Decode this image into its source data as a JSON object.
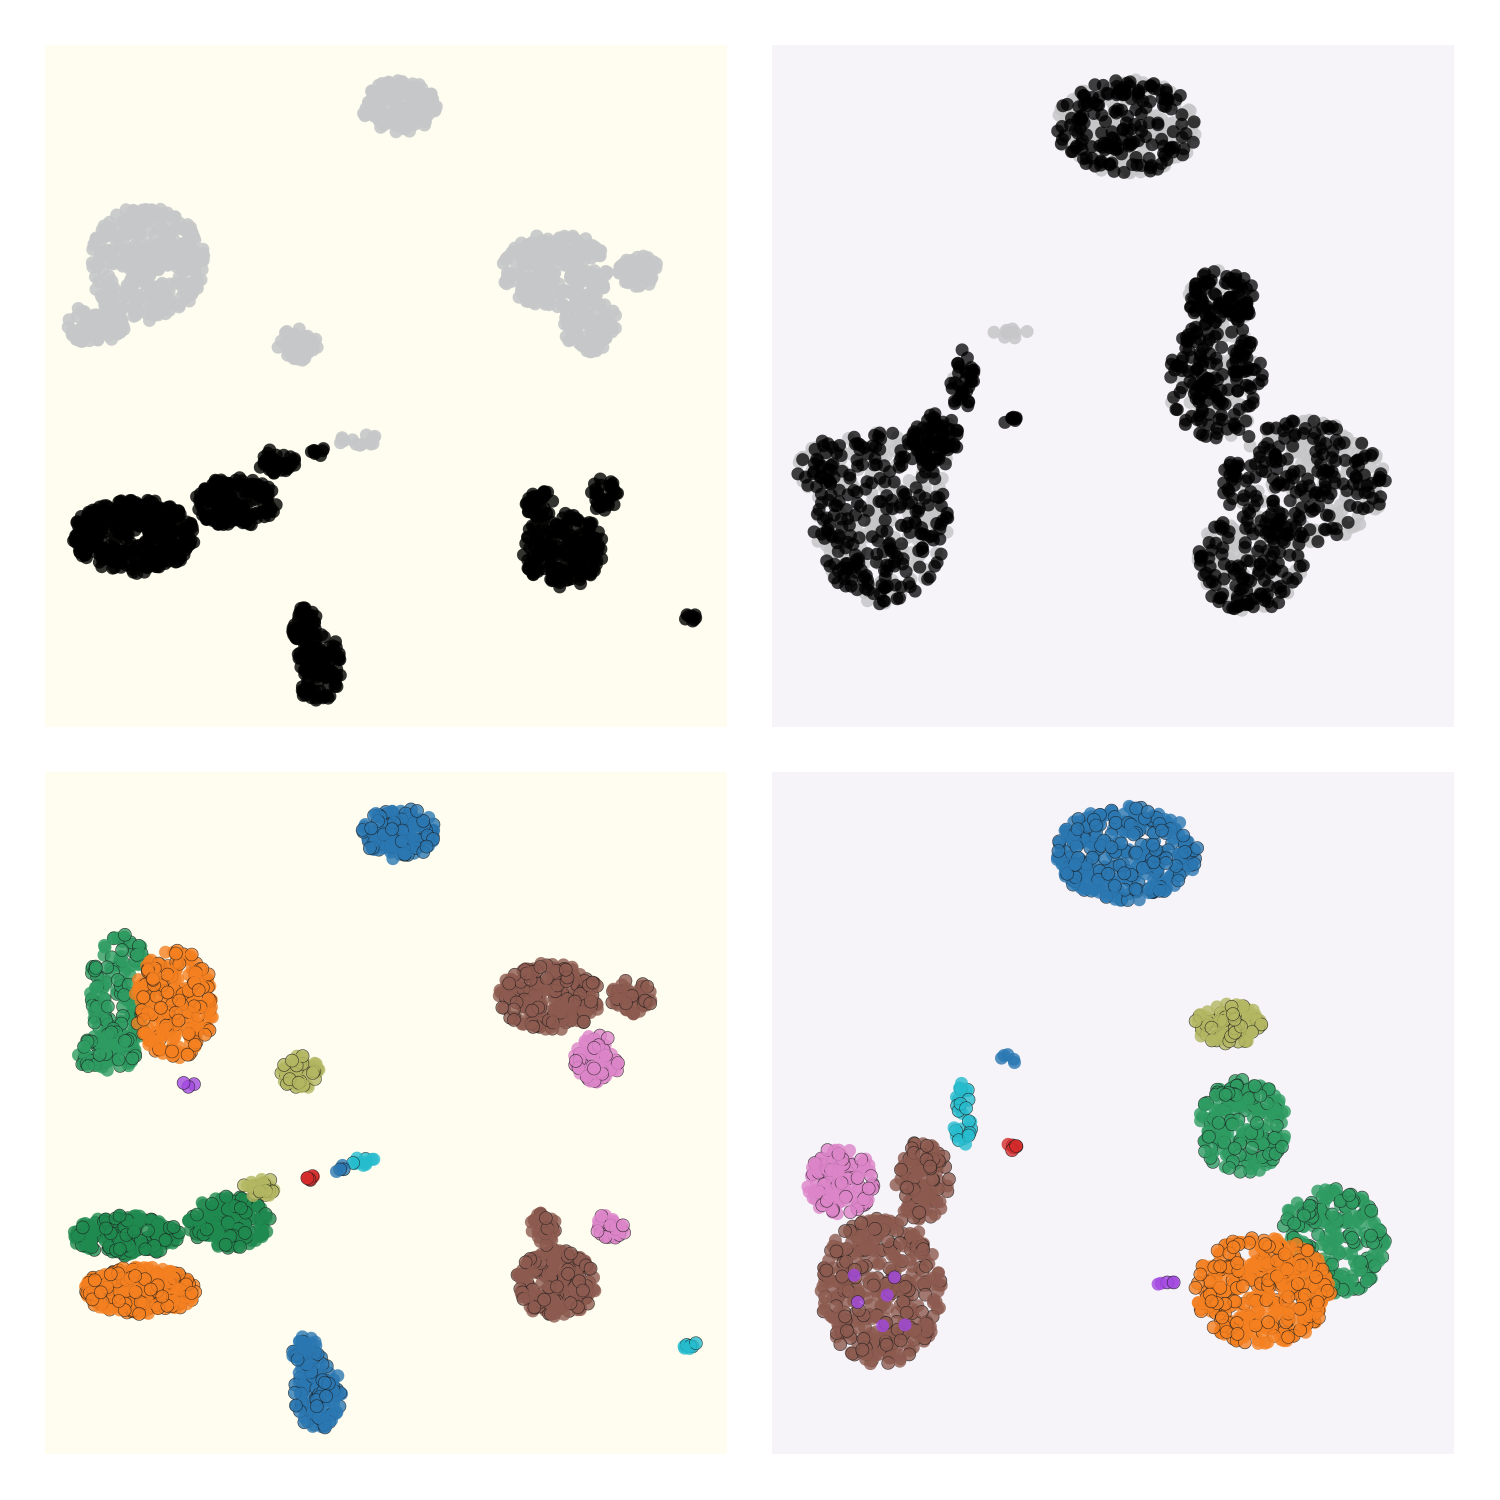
{
  "figure": {
    "colors": {
      "panel_bg_left": "#fefdf0",
      "panel_bg_right": "#f6f4f9",
      "point_highlight": "#000000",
      "point_background": "#c5c6c8",
      "blue": "#2a77b2",
      "orange": "#f47f20",
      "green": "#2e9b62",
      "dark_green": "#1f8a4f",
      "brown": "#8c5a4f",
      "pink": "#dc84c8",
      "olive": "#b3b762",
      "cyan": "#25bccd",
      "red": "#d42a2a",
      "purple": "#a349e0"
    }
  },
  "chart_data": [
    {
      "type": "scatter",
      "panel": "top-left",
      "title": "",
      "xlabel": "",
      "ylabel": "",
      "axes": "off",
      "grid": false,
      "legend": "none",
      "xlim": [
        0,
        100
      ],
      "ylim": [
        0,
        100
      ],
      "color_mode": "binary",
      "background_color": "#fefdf0",
      "clusters": [
        {
          "cx": 52,
          "cy": 91,
          "rx": 5.5,
          "ry": 3.8,
          "n": 140,
          "color": "point_background"
        },
        {
          "cx": 15,
          "cy": 68,
          "rx": 8.5,
          "ry": 8.5,
          "n": 320,
          "color": "point_background"
        },
        {
          "cx": 7.5,
          "cy": 59,
          "rx": 4.5,
          "ry": 3,
          "n": 80,
          "color": "point_background"
        },
        {
          "cx": 37,
          "cy": 56,
          "rx": 3,
          "ry": 2.4,
          "n": 50,
          "color": "point_background"
        },
        {
          "cx": 75,
          "cy": 67,
          "rx": 8,
          "ry": 5.5,
          "n": 240,
          "color": "point_background"
        },
        {
          "cx": 80,
          "cy": 59,
          "rx": 4,
          "ry": 4,
          "n": 90,
          "color": "point_background"
        },
        {
          "cx": 87,
          "cy": 67,
          "rx": 3,
          "ry": 2.5,
          "n": 50,
          "color": "point_background"
        },
        {
          "cx": 46,
          "cy": 42,
          "rx": 4,
          "ry": 1,
          "n": 14,
          "color": "point_background"
        },
        {
          "cx": 13,
          "cy": 28,
          "rx": 9,
          "ry": 5.5,
          "n": 380,
          "color": "point_highlight"
        },
        {
          "cx": 28,
          "cy": 33,
          "rx": 6,
          "ry": 3.8,
          "n": 170,
          "color": "point_highlight"
        },
        {
          "cx": 34,
          "cy": 39,
          "rx": 3,
          "ry": 1.8,
          "n": 40,
          "color": "point_highlight"
        },
        {
          "cx": 40,
          "cy": 40.5,
          "rx": 1.3,
          "ry": 0.8,
          "n": 8,
          "color": "point_highlight"
        },
        {
          "cx": 76,
          "cy": 26,
          "rx": 6,
          "ry": 5.5,
          "n": 200,
          "color": "point_highlight"
        },
        {
          "cx": 72.5,
          "cy": 33,
          "rx": 2,
          "ry": 2.5,
          "n": 35,
          "color": "point_highlight"
        },
        {
          "cx": 82,
          "cy": 34,
          "rx": 2,
          "ry": 2.5,
          "n": 35,
          "color": "point_highlight"
        },
        {
          "cx": 40,
          "cy": 9,
          "rx": 3.5,
          "ry": 5.5,
          "n": 110,
          "color": "point_highlight"
        },
        {
          "cx": 38,
          "cy": 15,
          "rx": 2,
          "ry": 2.5,
          "n": 40,
          "color": "point_highlight"
        },
        {
          "cx": 94.5,
          "cy": 16,
          "rx": 1,
          "ry": 0.8,
          "n": 8,
          "color": "point_highlight"
        }
      ]
    },
    {
      "type": "scatter",
      "panel": "top-right",
      "title": "",
      "xlabel": "",
      "ylabel": "",
      "axes": "off",
      "grid": false,
      "legend": "none",
      "xlim": [
        0,
        100
      ],
      "ylim": [
        0,
        100
      ],
      "color_mode": "binary-mixed",
      "background_color": "#f6f4f9",
      "clusters": [
        {
          "cx": 52,
          "cy": 88,
          "rx": 10.5,
          "ry": 7,
          "n": 320,
          "mix": 0.55
        },
        {
          "cx": 16,
          "cy": 31,
          "rx": 10,
          "ry": 13,
          "n": 420,
          "mix": 0.55
        },
        {
          "cx": 7,
          "cy": 38,
          "rx": 3.5,
          "ry": 4,
          "n": 60,
          "mix": 0.3
        },
        {
          "cx": 24,
          "cy": 42,
          "rx": 3.5,
          "ry": 4,
          "n": 90,
          "mix": 0.65
        },
        {
          "cx": 28,
          "cy": 51,
          "rx": 1.8,
          "ry": 5,
          "n": 40,
          "mix": 0.8
        },
        {
          "cx": 35,
          "cy": 45,
          "rx": 1.2,
          "ry": 0.6,
          "n": 8,
          "mix": 1
        },
        {
          "cx": 35,
          "cy": 58,
          "rx": 2.5,
          "ry": 1,
          "n": 8,
          "mix": 0
        },
        {
          "cx": 63,
          "cy": 48,
          "rx": 1.5,
          "ry": 0.8,
          "n": 6,
          "mix": 0.3
        },
        {
          "cx": 65,
          "cy": 51,
          "rx": 7,
          "ry": 9,
          "n": 240,
          "mix": 0.65
        },
        {
          "cx": 66,
          "cy": 63,
          "rx": 5,
          "ry": 4,
          "n": 120,
          "mix": 0.7
        },
        {
          "cx": 78,
          "cy": 36,
          "rx": 12,
          "ry": 9,
          "n": 380,
          "mix": 0.55
        },
        {
          "cx": 70,
          "cy": 24,
          "rx": 8,
          "ry": 7,
          "n": 240,
          "mix": 0.5
        }
      ]
    },
    {
      "type": "scatter",
      "panel": "bottom-left",
      "title": "",
      "xlabel": "",
      "ylabel": "",
      "axes": "off",
      "grid": false,
      "legend": "none",
      "xlim": [
        0,
        100
      ],
      "ylim": [
        0,
        100
      ],
      "color_mode": "categorical",
      "background_color": "#fefdf0",
      "clusters": [
        {
          "cx": 52,
          "cy": 91,
          "rx": 5.5,
          "ry": 3.8,
          "n": 140,
          "color": "blue"
        },
        {
          "cx": 11,
          "cy": 68,
          "rx": 4.5,
          "ry": 9,
          "n": 150,
          "color": "green"
        },
        {
          "cx": 9,
          "cy": 59,
          "rx": 4.5,
          "ry": 3,
          "n": 80,
          "color": "green"
        },
        {
          "cx": 19,
          "cy": 66,
          "rx": 6,
          "ry": 8,
          "n": 240,
          "color": "orange"
        },
        {
          "cx": 37.5,
          "cy": 56,
          "rx": 3,
          "ry": 2.4,
          "n": 50,
          "color": "olive"
        },
        {
          "cx": 74,
          "cy": 67,
          "rx": 7.5,
          "ry": 5,
          "n": 220,
          "color": "brown"
        },
        {
          "cx": 86,
          "cy": 67,
          "rx": 3,
          "ry": 2.5,
          "n": 45,
          "color": "brown"
        },
        {
          "cx": 81,
          "cy": 58,
          "rx": 3.5,
          "ry": 3.5,
          "n": 70,
          "color": "pink"
        },
        {
          "cx": 21,
          "cy": 54.5,
          "rx": 1,
          "ry": 1,
          "n": 3,
          "color": "purple"
        },
        {
          "cx": 14,
          "cy": 24,
          "rx": 8.5,
          "ry": 3.5,
          "n": 280,
          "color": "orange"
        },
        {
          "cx": 12,
          "cy": 32,
          "rx": 8,
          "ry": 3,
          "n": 200,
          "color": "dark_green"
        },
        {
          "cx": 27,
          "cy": 34,
          "rx": 6,
          "ry": 3.8,
          "n": 160,
          "color": "dark_green"
        },
        {
          "cx": 31.5,
          "cy": 39,
          "rx": 2.5,
          "ry": 1.5,
          "n": 30,
          "color": "olive"
        },
        {
          "cx": 39,
          "cy": 40.5,
          "rx": 1,
          "ry": 0.8,
          "n": 6,
          "color": "red"
        },
        {
          "cx": 47,
          "cy": 43,
          "rx": 2,
          "ry": 0.8,
          "n": 10,
          "color": "cyan"
        },
        {
          "cx": 43,
          "cy": 42,
          "rx": 1.2,
          "ry": 0.6,
          "n": 4,
          "color": "blue"
        },
        {
          "cx": 75,
          "cy": 25,
          "rx": 6,
          "ry": 5,
          "n": 190,
          "color": "brown"
        },
        {
          "cx": 73,
          "cy": 33,
          "rx": 2,
          "ry": 2.5,
          "n": 30,
          "color": "brown"
        },
        {
          "cx": 83,
          "cy": 33.5,
          "rx": 2.2,
          "ry": 2.2,
          "n": 35,
          "color": "pink"
        },
        {
          "cx": 40,
          "cy": 9,
          "rx": 3.5,
          "ry": 5.5,
          "n": 110,
          "color": "blue"
        },
        {
          "cx": 38,
          "cy": 15,
          "rx": 2,
          "ry": 2.5,
          "n": 40,
          "color": "blue"
        },
        {
          "cx": 94.5,
          "cy": 16,
          "rx": 1,
          "ry": 0.8,
          "n": 8,
          "color": "cyan"
        }
      ]
    },
    {
      "type": "scatter",
      "panel": "bottom-right",
      "title": "",
      "xlabel": "",
      "ylabel": "",
      "axes": "off",
      "grid": false,
      "legend": "none",
      "xlim": [
        0,
        100
      ],
      "ylim": [
        0,
        100
      ],
      "color_mode": "categorical",
      "background_color": "#f6f4f9",
      "clusters": [
        {
          "cx": 52,
          "cy": 88,
          "rx": 10.5,
          "ry": 7,
          "n": 320,
          "color": "blue"
        },
        {
          "cx": 10,
          "cy": 40,
          "rx": 5,
          "ry": 5,
          "n": 120,
          "color": "pink"
        },
        {
          "cx": 16,
          "cy": 24,
          "rx": 9,
          "ry": 11,
          "n": 360,
          "color": "brown"
        },
        {
          "cx": 22,
          "cy": 40,
          "rx": 4,
          "ry": 6,
          "n": 110,
          "color": "brown"
        },
        {
          "cx": 28,
          "cy": 50,
          "rx": 1.5,
          "ry": 5,
          "n": 25,
          "color": "cyan"
        },
        {
          "cx": 35,
          "cy": 45,
          "rx": 1.2,
          "ry": 0.6,
          "n": 6,
          "color": "red"
        },
        {
          "cx": 35,
          "cy": 58,
          "rx": 2,
          "ry": 0.8,
          "n": 5,
          "color": "blue"
        },
        {
          "cx": 67,
          "cy": 63,
          "rx": 5,
          "ry": 3,
          "n": 90,
          "color": "olive"
        },
        {
          "cx": 69,
          "cy": 48,
          "rx": 6.5,
          "ry": 7,
          "n": 200,
          "color": "green"
        },
        {
          "cx": 82,
          "cy": 31,
          "rx": 8,
          "ry": 8,
          "n": 240,
          "color": "green"
        },
        {
          "cx": 72,
          "cy": 24,
          "rx": 10,
          "ry": 8,
          "n": 380,
          "color": "orange"
        },
        {
          "cx": 58,
          "cy": 25,
          "rx": 1.5,
          "ry": 0.8,
          "n": 5,
          "color": "purple"
        },
        {
          "cx": 16,
          "cy": 24,
          "rx": 6,
          "ry": 8,
          "n": 6,
          "color": "purple"
        }
      ]
    }
  ]
}
